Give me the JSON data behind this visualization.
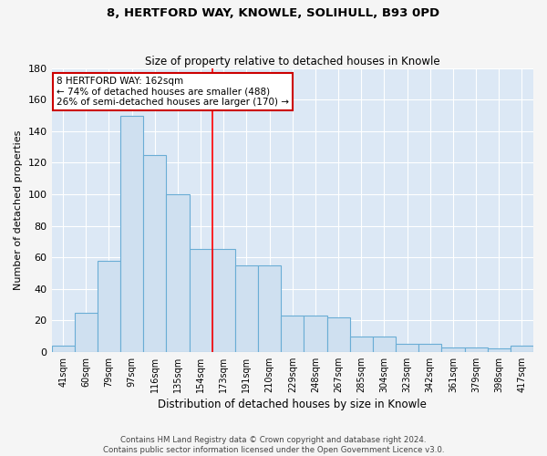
{
  "title": "8, HERTFORD WAY, KNOWLE, SOLIHULL, B93 0PD",
  "subtitle": "Size of property relative to detached houses in Knowle",
  "xlabel": "Distribution of detached houses by size in Knowle",
  "ylabel": "Number of detached properties",
  "bin_labels": [
    "41sqm",
    "60sqm",
    "79sqm",
    "97sqm",
    "116sqm",
    "135sqm",
    "154sqm",
    "173sqm",
    "191sqm",
    "210sqm",
    "229sqm",
    "248sqm",
    "267sqm",
    "285sqm",
    "304sqm",
    "323sqm",
    "342sqm",
    "361sqm",
    "379sqm",
    "398sqm",
    "417sqm"
  ],
  "bar_heights": [
    4,
    25,
    58,
    150,
    125,
    100,
    65,
    65,
    55,
    55,
    23,
    23,
    22,
    10,
    10,
    5,
    5,
    3,
    3,
    2,
    4
  ],
  "bar_color": "#cfe0f0",
  "bar_edge_color": "#6aadd5",
  "bar_edge_width": 0.8,
  "ylim": [
    0,
    180
  ],
  "yticks": [
    0,
    20,
    40,
    60,
    80,
    100,
    120,
    140,
    160,
    180
  ],
  "red_line_bin": 6.5,
  "annotation_text": "8 HERTFORD WAY: 162sqm\n← 74% of detached houses are smaller (488)\n26% of semi-detached houses are larger (170) →",
  "annotation_box_color": "#ffffff",
  "annotation_box_edge": "#cc0000",
  "footer_line1": "Contains HM Land Registry data © Crown copyright and database right 2024.",
  "footer_line2": "Contains public sector information licensed under the Open Government Licence v3.0.",
  "background_color": "#dce8f5",
  "grid_color": "#ffffff",
  "fig_bg": "#f5f5f5"
}
